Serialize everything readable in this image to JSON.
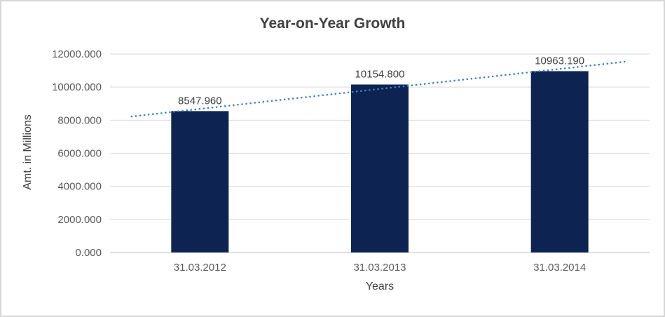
{
  "chart_data": {
    "type": "bar",
    "title": "Year-on-Year Growth",
    "xlabel": "Years",
    "ylabel": "Amt. in Millions",
    "categories": [
      "31.03.2012",
      "31.03.2013",
      "31.03.2014"
    ],
    "values": [
      8547.96,
      10154.8,
      10963.19
    ],
    "value_labels": [
      "8547.960",
      "10154.800",
      "10963.190"
    ],
    "ylim": [
      0,
      12000
    ],
    "ytick_step": 2000,
    "ytick_labels": [
      "0.000",
      "2000.000",
      "4000.000",
      "6000.000",
      "8000.000",
      "10000.000",
      "12000.000"
    ],
    "grid": true,
    "legend": "none",
    "bar_color": "#0d2452",
    "trendline_color": "#3e82c4",
    "gridline_color": "#d9d9d9",
    "axis_line_color": "#bfbfbf",
    "has_trendline": true
  }
}
